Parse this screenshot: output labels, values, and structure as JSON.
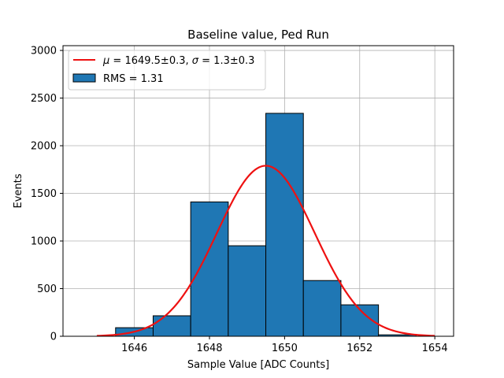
{
  "chart_data": {
    "type": "bar",
    "title": "Baseline value, Ped Run",
    "xlabel": "Sample Value [ADC Counts]",
    "ylabel": "Events",
    "xlim": [
      1644.1,
      1654.5
    ],
    "ylim": [
      0,
      3050
    ],
    "xticks": [
      1646,
      1648,
      1650,
      1652,
      1654
    ],
    "yticks": [
      0,
      500,
      1000,
      1500,
      2000,
      2500,
      3000
    ],
    "grid": true,
    "legend_position": "top-left",
    "histogram": {
      "name": "RMS = 1.31",
      "bin_edges": [
        1644.5,
        1645.5,
        1646.5,
        1647.5,
        1648.5,
        1649.5,
        1650.5,
        1651.5,
        1652.5,
        1653.5
      ],
      "counts": [
        0,
        90,
        215,
        1410,
        950,
        2340,
        585,
        330,
        15
      ],
      "color": "#1f77b4"
    },
    "fit": {
      "name_parts": {
        "mu_label": "μ",
        "mu_value": " = 1649.5±0.3, ",
        "sigma_label": "σ",
        "sigma_value": " = 1.3±0.3"
      },
      "mu": 1649.5,
      "sigma": 1.3,
      "amplitude": 1790,
      "x_range": [
        1645,
        1654
      ],
      "color": "#ee1111"
    }
  }
}
